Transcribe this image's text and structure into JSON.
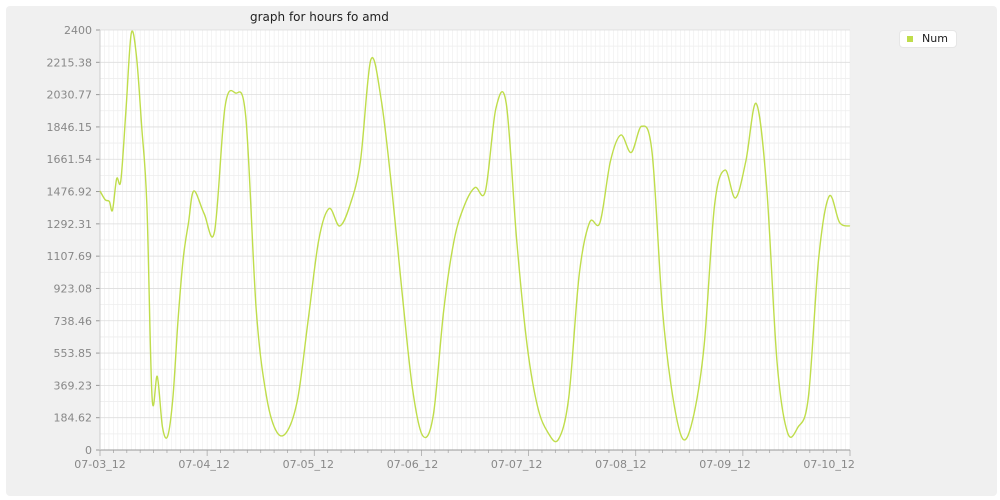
{
  "chart_data": {
    "type": "line",
    "title": "graph for hours fo amd",
    "xlabel": "",
    "ylabel": "",
    "ylim": [
      0,
      2400
    ],
    "yticks": [
      "0",
      "184.62",
      "369.23",
      "553.85",
      "738.46",
      "923.08",
      "1107.69",
      "1292.31",
      "1476.92",
      "1661.54",
      "1846.15",
      "2030.77",
      "2215.38",
      "2400"
    ],
    "xticks": [
      "07-03_12",
      "07-04_12",
      "07-05_12",
      "07-06_12",
      "07-07_12",
      "07-08_12",
      "07-09_12",
      "07-10_12"
    ],
    "x_range": [
      0,
      7.2
    ],
    "grid": true,
    "legend_position": "top-right",
    "series": [
      {
        "name": "Num",
        "color": "#bfdd4b",
        "x": [
          0,
          0.05,
          0.09,
          0.12,
          0.16,
          0.2,
          0.25,
          0.3,
          0.35,
          0.4,
          0.45,
          0.5,
          0.55,
          0.6,
          0.65,
          0.7,
          0.75,
          0.8,
          0.85,
          0.9,
          1.0,
          1.1,
          1.2,
          1.3,
          1.4,
          1.5,
          1.6,
          1.7,
          1.8,
          1.9,
          2.0,
          2.1,
          2.2,
          2.3,
          2.4,
          2.5,
          2.6,
          2.7,
          2.8,
          2.9,
          3.0,
          3.1,
          3.2,
          3.3,
          3.4,
          3.5,
          3.6,
          3.7,
          3.8,
          3.9,
          4.0,
          4.1,
          4.2,
          4.3,
          4.4,
          4.5,
          4.6,
          4.7,
          4.8,
          4.9,
          5.0,
          5.1,
          5.2,
          5.3,
          5.4,
          5.5,
          5.6,
          5.7,
          5.8,
          5.9,
          6.0,
          6.1,
          6.2,
          6.3,
          6.4,
          6.5,
          6.6,
          6.7,
          6.8,
          6.9,
          7.0,
          7.1,
          7.2
        ],
        "values": [
          1480,
          1430,
          1420,
          1370,
          1550,
          1540,
          1950,
          2380,
          2250,
          1850,
          1400,
          300,
          420,
          130,
          80,
          300,
          750,
          1100,
          1300,
          1480,
          1350,
          1250,
          1960,
          2040,
          1900,
          800,
          300,
          100,
          110,
          300,
          750,
          1200,
          1380,
          1280,
          1400,
          1650,
          2230,
          2000,
          1500,
          900,
          350,
          80,
          200,
          800,
          1200,
          1400,
          1500,
          1480,
          1950,
          1980,
          1200,
          600,
          250,
          100,
          60,
          300,
          1000,
          1300,
          1300,
          1650,
          1800,
          1700,
          1850,
          1700,
          800,
          300,
          60,
          200,
          600,
          1400,
          1600,
          1440,
          1650,
          1980,
          1500,
          500,
          100,
          130,
          300,
          1100,
          1450,
          1300,
          1280
        ]
      }
    ]
  },
  "colors": {
    "frame_bg": "#f0f0f0",
    "plot_bg": "#ffffff",
    "series": "#bfdd4b",
    "axis_text": "#888888"
  }
}
